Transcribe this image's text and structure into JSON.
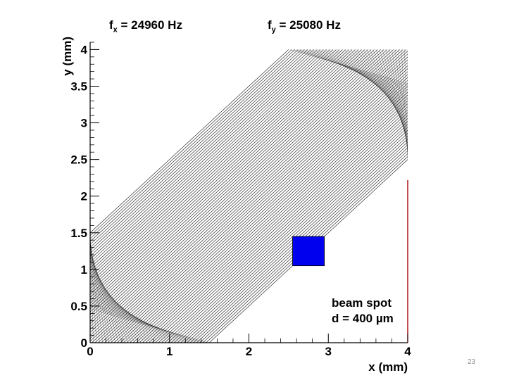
{
  "slide_number": "23",
  "chart_data": {
    "type": "scatter",
    "title": "",
    "annotations": {
      "fx_symbol": "f",
      "fx_sub": "x",
      "fx_value": " = 24960 Hz",
      "fy_symbol": "f",
      "fy_sub": "y",
      "fy_value": " = 25080 Hz",
      "beam_spot_line1": "beam spot",
      "beam_spot_line2": "d = 400 µm"
    },
    "xlabel": "x (mm)",
    "ylabel": "y (mm)",
    "xlim": [
      0,
      4
    ],
    "ylim": [
      0,
      4.1
    ],
    "x_ticks": [
      "0",
      "1",
      "2",
      "3",
      "4"
    ],
    "y_ticks": [
      "0",
      "0.5",
      "1",
      "1.5",
      "2",
      "2.5",
      "3",
      "3.5",
      "4"
    ],
    "x_tick_values": [
      0,
      1,
      2,
      3,
      4
    ],
    "y_tick_values": [
      0,
      0.5,
      1,
      1.5,
      2,
      2.5,
      3,
      3.5,
      4
    ],
    "scan_region": {
      "description_points": [
        [
          0,
          0
        ],
        [
          0,
          1.5
        ],
        [
          2.5,
          4
        ],
        [
          4,
          4
        ],
        [
          4,
          2.5
        ],
        [
          1.5,
          0
        ]
      ],
      "line_spacing_mm": 0.04
    },
    "beam_spot": {
      "x_center": 2.75,
      "y_center": 1.25,
      "size": 0.4,
      "color": "#0000ee"
    },
    "colors": {
      "frame": "#000000",
      "right_edge": "#aa0000",
      "scan_lines": "#000000"
    }
  }
}
